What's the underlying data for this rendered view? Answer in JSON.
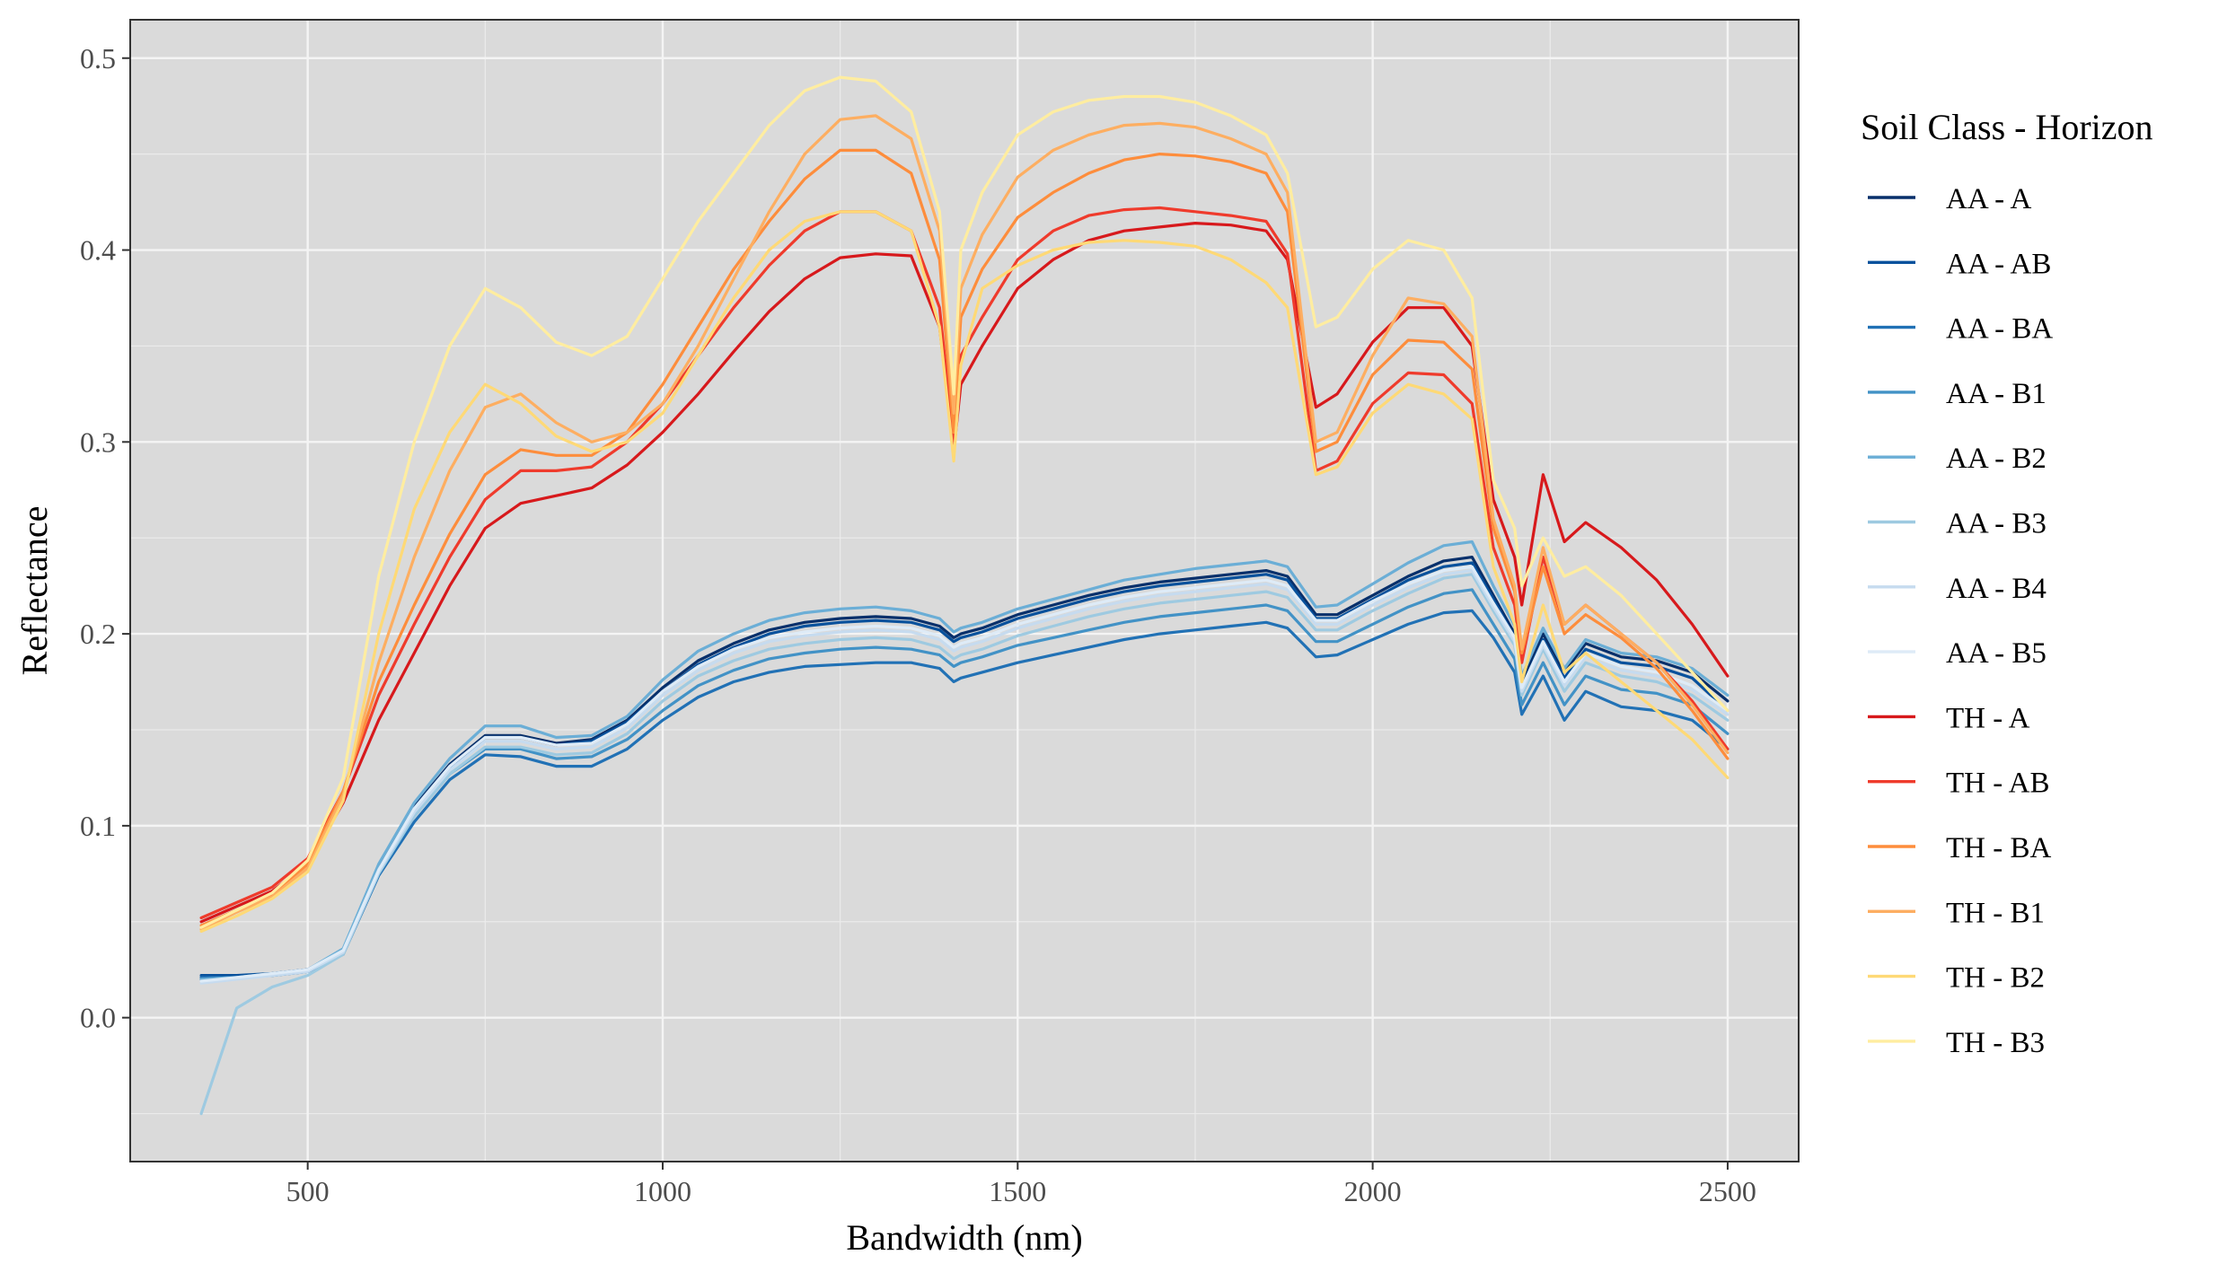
{
  "chart_data": {
    "type": "line",
    "xlabel": "Bandwidth (nm)",
    "ylabel": "Reflectance",
    "xlim": [
      250,
      2600
    ],
    "ylim": [
      -0.075,
      0.52
    ],
    "x_ticks": [
      500,
      1000,
      1500,
      2000,
      2500
    ],
    "y_ticks": [
      0.0,
      0.1,
      0.2,
      0.3,
      0.4,
      0.5
    ],
    "x_tick_labels": [
      "500",
      "1000",
      "1500",
      "2000",
      "2500"
    ],
    "y_tick_labels": [
      "0.0",
      "0.1",
      "0.2",
      "0.3",
      "0.4",
      "0.5"
    ],
    "grid": true,
    "legend": {
      "title": "Soil Class - Horizon",
      "position": "right"
    },
    "x": [
      350,
      400,
      450,
      500,
      550,
      600,
      650,
      700,
      750,
      800,
      850,
      900,
      950,
      1000,
      1050,
      1100,
      1150,
      1200,
      1250,
      1300,
      1350,
      1390,
      1410,
      1420,
      1450,
      1500,
      1550,
      1600,
      1650,
      1700,
      1750,
      1800,
      1850,
      1880,
      1920,
      1950,
      2000,
      2050,
      2100,
      2140,
      2170,
      2200,
      2210,
      2240,
      2270,
      2300,
      2350,
      2400,
      2450,
      2500
    ],
    "series": [
      {
        "name": "AA - A",
        "color": "#08306b",
        "values": [
          0.02,
          0.021,
          0.023,
          0.025,
          0.035,
          0.078,
          0.11,
          0.132,
          0.147,
          0.147,
          0.143,
          0.145,
          0.155,
          0.172,
          0.186,
          0.195,
          0.202,
          0.206,
          0.208,
          0.209,
          0.208,
          0.204,
          0.198,
          0.2,
          0.203,
          0.21,
          0.215,
          0.22,
          0.224,
          0.227,
          0.229,
          0.231,
          0.233,
          0.23,
          0.21,
          0.21,
          0.22,
          0.23,
          0.238,
          0.24,
          0.22,
          0.2,
          0.175,
          0.2,
          0.18,
          0.195,
          0.188,
          0.186,
          0.18,
          0.165
        ]
      },
      {
        "name": "AA - AB",
        "color": "#08519c",
        "values": [
          0.022,
          0.022,
          0.023,
          0.025,
          0.035,
          0.077,
          0.108,
          0.13,
          0.146,
          0.146,
          0.142,
          0.144,
          0.154,
          0.17,
          0.184,
          0.193,
          0.2,
          0.204,
          0.206,
          0.207,
          0.206,
          0.202,
          0.196,
          0.198,
          0.201,
          0.208,
          0.213,
          0.218,
          0.222,
          0.225,
          0.227,
          0.229,
          0.231,
          0.228,
          0.208,
          0.208,
          0.218,
          0.228,
          0.235,
          0.237,
          0.218,
          0.198,
          0.172,
          0.197,
          0.177,
          0.192,
          0.185,
          0.183,
          0.177,
          0.16
        ]
      },
      {
        "name": "AA - BA",
        "color": "#2171b5",
        "values": [
          0.021,
          0.021,
          0.022,
          0.024,
          0.033,
          0.074,
          0.102,
          0.124,
          0.137,
          0.136,
          0.131,
          0.131,
          0.14,
          0.155,
          0.167,
          0.175,
          0.18,
          0.183,
          0.184,
          0.185,
          0.185,
          0.182,
          0.175,
          0.177,
          0.18,
          0.185,
          0.189,
          0.193,
          0.197,
          0.2,
          0.202,
          0.204,
          0.206,
          0.203,
          0.188,
          0.189,
          0.197,
          0.205,
          0.211,
          0.212,
          0.198,
          0.18,
          0.158,
          0.178,
          0.155,
          0.17,
          0.162,
          0.16,
          0.155,
          0.14
        ]
      },
      {
        "name": "AA - B1",
        "color": "#4292c6",
        "values": [
          0.02,
          0.021,
          0.022,
          0.024,
          0.034,
          0.075,
          0.105,
          0.127,
          0.14,
          0.14,
          0.135,
          0.136,
          0.145,
          0.16,
          0.173,
          0.181,
          0.187,
          0.19,
          0.192,
          0.193,
          0.192,
          0.189,
          0.183,
          0.185,
          0.188,
          0.194,
          0.198,
          0.202,
          0.206,
          0.209,
          0.211,
          0.213,
          0.215,
          0.212,
          0.196,
          0.196,
          0.205,
          0.214,
          0.221,
          0.223,
          0.205,
          0.187,
          0.163,
          0.185,
          0.163,
          0.178,
          0.171,
          0.169,
          0.163,
          0.148
        ]
      },
      {
        "name": "AA - B2",
        "color": "#6baed6",
        "values": [
          0.02,
          0.021,
          0.023,
          0.025,
          0.036,
          0.08,
          0.112,
          0.135,
          0.152,
          0.152,
          0.146,
          0.147,
          0.157,
          0.176,
          0.191,
          0.2,
          0.207,
          0.211,
          0.213,
          0.214,
          0.212,
          0.208,
          0.201,
          0.203,
          0.206,
          0.213,
          0.218,
          0.223,
          0.228,
          0.231,
          0.234,
          0.236,
          0.238,
          0.235,
          0.214,
          0.215,
          0.226,
          0.237,
          0.246,
          0.248,
          0.225,
          0.204,
          0.178,
          0.203,
          0.182,
          0.197,
          0.19,
          0.188,
          0.182,
          0.168
        ]
      },
      {
        "name": "AA - B3",
        "color": "#9ecae1",
        "values": [
          -0.05,
          0.005,
          0.016,
          0.022,
          0.033,
          0.075,
          0.105,
          0.127,
          0.141,
          0.141,
          0.137,
          0.138,
          0.148,
          0.165,
          0.178,
          0.186,
          0.192,
          0.195,
          0.197,
          0.198,
          0.197,
          0.193,
          0.187,
          0.189,
          0.192,
          0.199,
          0.204,
          0.209,
          0.213,
          0.216,
          0.218,
          0.22,
          0.222,
          0.219,
          0.202,
          0.202,
          0.212,
          0.221,
          0.229,
          0.231,
          0.212,
          0.194,
          0.168,
          0.192,
          0.17,
          0.185,
          0.178,
          0.175,
          0.168,
          0.155
        ]
      },
      {
        "name": "AA - B4",
        "color": "#c6dbef",
        "values": [
          0.018,
          0.02,
          0.022,
          0.024,
          0.034,
          0.076,
          0.107,
          0.129,
          0.144,
          0.144,
          0.14,
          0.141,
          0.151,
          0.168,
          0.181,
          0.19,
          0.196,
          0.199,
          0.201,
          0.202,
          0.201,
          0.197,
          0.191,
          0.193,
          0.196,
          0.203,
          0.208,
          0.213,
          0.217,
          0.22,
          0.222,
          0.224,
          0.226,
          0.223,
          0.205,
          0.205,
          0.215,
          0.224,
          0.231,
          0.233,
          0.214,
          0.196,
          0.17,
          0.194,
          0.173,
          0.188,
          0.181,
          0.178,
          0.171,
          0.158
        ]
      },
      {
        "name": "AA - B5",
        "color": "#deebf7",
        "values": [
          0.019,
          0.021,
          0.023,
          0.025,
          0.035,
          0.077,
          0.109,
          0.131,
          0.146,
          0.146,
          0.142,
          0.143,
          0.153,
          0.17,
          0.183,
          0.192,
          0.198,
          0.201,
          0.203,
          0.204,
          0.203,
          0.199,
          0.193,
          0.195,
          0.198,
          0.205,
          0.21,
          0.215,
          0.219,
          0.222,
          0.224,
          0.226,
          0.228,
          0.225,
          0.207,
          0.207,
          0.217,
          0.226,
          0.233,
          0.235,
          0.216,
          0.198,
          0.172,
          0.196,
          0.175,
          0.19,
          0.183,
          0.18,
          0.173,
          0.16
        ]
      },
      {
        "name": "TH - A",
        "color": "#d7191c",
        "values": [
          0.05,
          0.058,
          0.066,
          0.08,
          0.112,
          0.155,
          0.19,
          0.225,
          0.255,
          0.268,
          0.272,
          0.276,
          0.288,
          0.305,
          0.325,
          0.347,
          0.368,
          0.385,
          0.396,
          0.398,
          0.397,
          0.36,
          0.295,
          0.33,
          0.35,
          0.38,
          0.395,
          0.405,
          0.41,
          0.412,
          0.414,
          0.413,
          0.41,
          0.395,
          0.318,
          0.325,
          0.352,
          0.37,
          0.37,
          0.35,
          0.27,
          0.24,
          0.215,
          0.283,
          0.248,
          0.258,
          0.245,
          0.228,
          0.205,
          0.178
        ]
      },
      {
        "name": "TH - AB",
        "color": "#ef3b2c",
        "values": [
          0.052,
          0.06,
          0.068,
          0.083,
          0.118,
          0.168,
          0.205,
          0.24,
          0.27,
          0.285,
          0.285,
          0.287,
          0.3,
          0.32,
          0.345,
          0.37,
          0.392,
          0.41,
          0.42,
          0.42,
          0.41,
          0.37,
          0.3,
          0.345,
          0.365,
          0.395,
          0.41,
          0.418,
          0.421,
          0.422,
          0.42,
          0.418,
          0.415,
          0.398,
          0.285,
          0.29,
          0.32,
          0.336,
          0.335,
          0.32,
          0.245,
          0.215,
          0.185,
          0.24,
          0.205,
          0.215,
          0.2,
          0.185,
          0.165,
          0.14
        ]
      },
      {
        "name": "TH - BA",
        "color": "#fd8d3c",
        "values": [
          0.048,
          0.056,
          0.064,
          0.08,
          0.118,
          0.175,
          0.215,
          0.252,
          0.283,
          0.296,
          0.293,
          0.293,
          0.305,
          0.33,
          0.36,
          0.39,
          0.415,
          0.437,
          0.452,
          0.452,
          0.44,
          0.395,
          0.305,
          0.365,
          0.39,
          0.417,
          0.43,
          0.44,
          0.447,
          0.45,
          0.449,
          0.446,
          0.44,
          0.42,
          0.295,
          0.3,
          0.335,
          0.353,
          0.352,
          0.338,
          0.255,
          0.222,
          0.19,
          0.235,
          0.2,
          0.21,
          0.198,
          0.182,
          0.16,
          0.135
        ]
      },
      {
        "name": "TH - B1",
        "color": "#fdae61",
        "values": [
          0.046,
          0.055,
          0.063,
          0.078,
          0.116,
          0.185,
          0.24,
          0.285,
          0.318,
          0.325,
          0.31,
          0.3,
          0.305,
          0.32,
          0.35,
          0.385,
          0.42,
          0.45,
          0.468,
          0.47,
          0.458,
          0.41,
          0.315,
          0.38,
          0.408,
          0.438,
          0.452,
          0.46,
          0.465,
          0.466,
          0.464,
          0.458,
          0.45,
          0.43,
          0.3,
          0.305,
          0.345,
          0.375,
          0.372,
          0.355,
          0.26,
          0.225,
          0.192,
          0.245,
          0.205,
          0.215,
          0.2,
          0.185,
          0.163,
          0.138
        ]
      },
      {
        "name": "TH - B2",
        "color": "#fed976",
        "values": [
          0.045,
          0.053,
          0.062,
          0.076,
          0.113,
          0.2,
          0.265,
          0.305,
          0.33,
          0.32,
          0.303,
          0.295,
          0.3,
          0.315,
          0.345,
          0.375,
          0.4,
          0.415,
          0.42,
          0.42,
          0.41,
          0.36,
          0.29,
          0.34,
          0.38,
          0.392,
          0.4,
          0.404,
          0.405,
          0.404,
          0.402,
          0.395,
          0.383,
          0.37,
          0.283,
          0.287,
          0.315,
          0.33,
          0.325,
          0.312,
          0.235,
          0.205,
          0.175,
          0.215,
          0.18,
          0.19,
          0.175,
          0.16,
          0.145,
          0.125
        ]
      },
      {
        "name": "TH - B3",
        "color": "#ffeda0",
        "values": [
          0.047,
          0.056,
          0.065,
          0.082,
          0.125,
          0.23,
          0.3,
          0.35,
          0.38,
          0.37,
          0.352,
          0.345,
          0.355,
          0.385,
          0.415,
          0.44,
          0.465,
          0.483,
          0.49,
          0.488,
          0.472,
          0.42,
          0.325,
          0.4,
          0.43,
          0.46,
          0.472,
          0.478,
          0.48,
          0.48,
          0.477,
          0.47,
          0.46,
          0.44,
          0.36,
          0.365,
          0.39,
          0.405,
          0.4,
          0.375,
          0.28,
          0.255,
          0.225,
          0.25,
          0.23,
          0.235,
          0.22,
          0.2,
          0.18,
          0.16
        ]
      }
    ]
  }
}
